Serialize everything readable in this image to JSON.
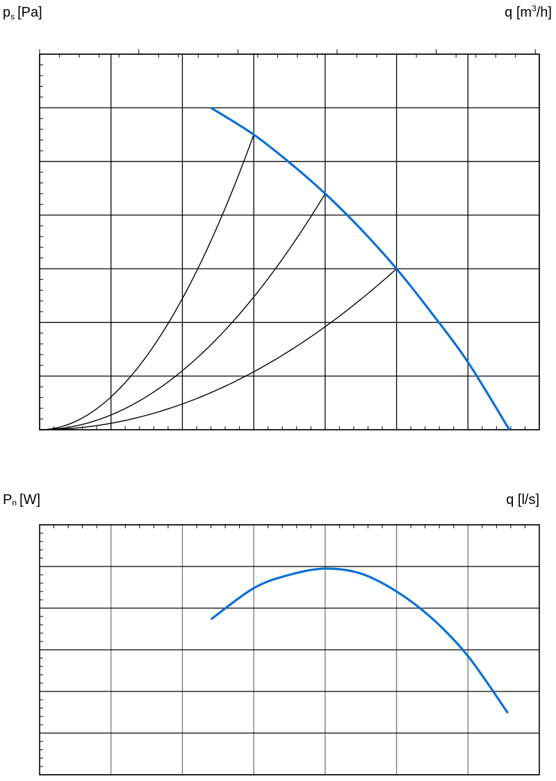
{
  "chart_data": [
    {
      "type": "line",
      "ylabel_main": "p",
      "ylabel_sub": "s",
      "ylabel_unit": "[Pa]",
      "x2label": "q [m",
      "x2label_sup": "3",
      "x2label_end": "/h]",
      "xlim": [
        0,
        700
      ],
      "ylim": [
        0,
        350
      ],
      "x_ticks": [
        0,
        100,
        200,
        300,
        400,
        500,
        600,
        700
      ],
      "y_ticks": [
        0,
        50,
        100,
        150,
        200,
        250,
        300,
        350
      ],
      "x2_ticks": [
        0,
        500,
        1000,
        1500,
        2000,
        2500
      ],
      "grid": true,
      "fan_curve": {
        "color": "#0a6fd6",
        "x": [
          240,
          300,
          350,
          400,
          450,
          500,
          550,
          600,
          658
        ],
        "y": [
          300,
          275,
          249,
          220,
          187,
          150,
          108,
          63,
          0
        ]
      },
      "system_curves": [
        {
          "x_end": 300,
          "y_end": 275
        },
        {
          "x_end": 400,
          "y_end": 220
        },
        {
          "x_end": 500,
          "y_end": 150
        }
      ]
    },
    {
      "type": "line",
      "ylabel_main": "P",
      "ylabel_sub": "n",
      "ylabel_unit": "[W]",
      "xlabel": "q [l/s]",
      "xlim": [
        0,
        700
      ],
      "ylim": [
        100,
        160
      ],
      "y_ticks": [
        100,
        110,
        120,
        130,
        140,
        150,
        160
      ],
      "grid": true,
      "power_curve": {
        "color": "#0a6fd6",
        "x": [
          240,
          300,
          350,
          400,
          450,
          500,
          550,
          600,
          656
        ],
        "y": [
          137.3,
          144.8,
          148,
          149.5,
          148.3,
          144,
          137.5,
          128.5,
          114.8
        ]
      }
    }
  ]
}
